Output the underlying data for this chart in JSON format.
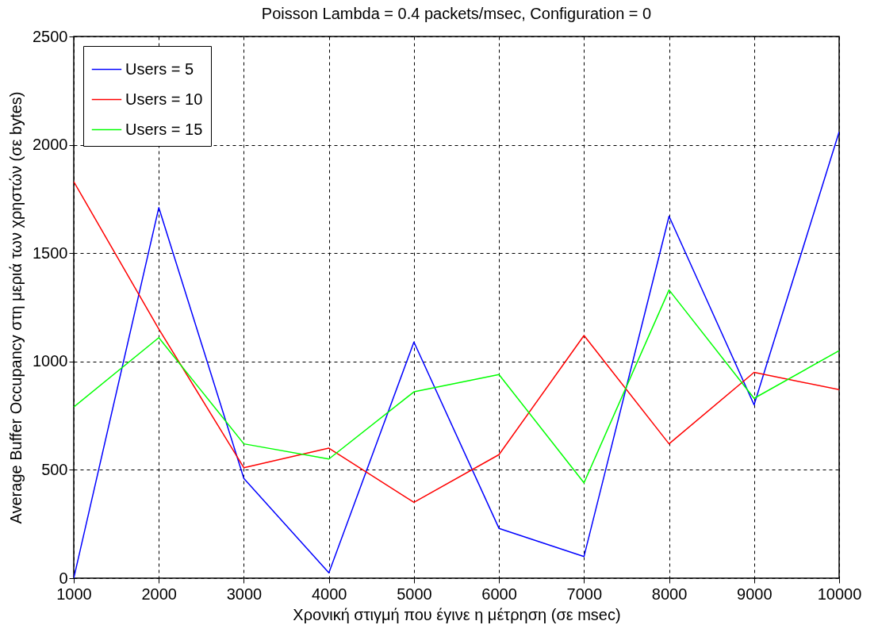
{
  "chart_data": {
    "type": "line",
    "title": "Poisson Lambda = 0.4 packets/msec, Configuration = 0",
    "xlabel": "Χρονική στιγμή που έγινε η μέτρηση (σε msec)",
    "ylabel": "Average Buffer Occupancy στη μεριά των χρηστών (σε bytes)",
    "x": [
      1000,
      2000,
      3000,
      4000,
      5000,
      6000,
      7000,
      8000,
      9000,
      10000
    ],
    "series": [
      {
        "name": "Users = 5",
        "color": "#0000ff",
        "values": [
          0,
          1710,
          460,
          25,
          1090,
          230,
          100,
          1670,
          800,
          2060
        ]
      },
      {
        "name": "Users = 10",
        "color": "#ff0000",
        "values": [
          1830,
          1150,
          510,
          600,
          350,
          570,
          1120,
          620,
          950,
          870
        ]
      },
      {
        "name": "Users = 15",
        "color": "#00ff00",
        "values": [
          790,
          1110,
          620,
          550,
          860,
          940,
          440,
          1330,
          830,
          1050
        ]
      }
    ],
    "xlim": [
      1000,
      10000
    ],
    "xticks": [
      1000,
      2000,
      3000,
      4000,
      5000,
      6000,
      7000,
      8000,
      9000,
      10000
    ],
    "ylim": [
      0,
      2500
    ],
    "yticks": [
      0,
      500,
      1000,
      1500,
      2000,
      2500
    ],
    "grid": true,
    "legend": "top left",
    "line_style": "solid"
  }
}
